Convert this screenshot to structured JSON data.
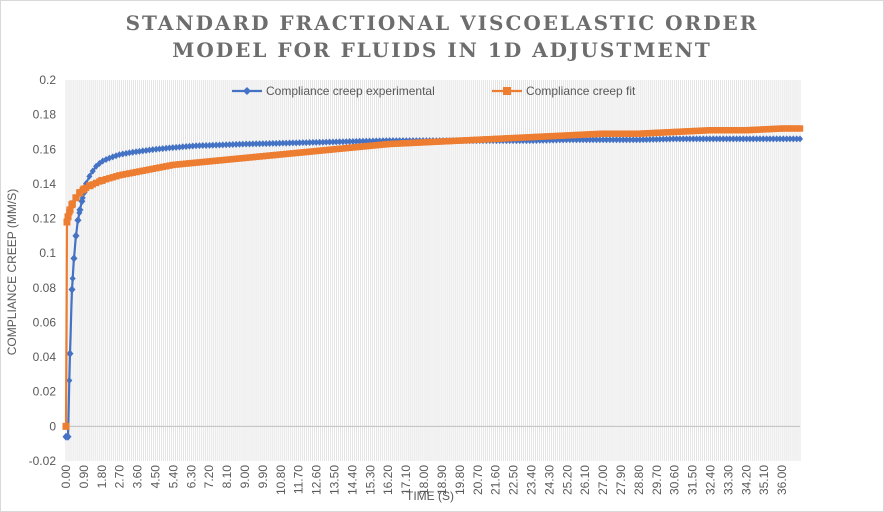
{
  "chart_data": {
    "type": "line",
    "title": "STANDARD FRACTIONAL VISCOELASTIC ORDER MODEL FOR FLUIDS IN 1D ADJUSTMENT",
    "title_lines": [
      "STANDARD FRACTIONAL VISCOELASTIC ORDER",
      "MODEL FOR FLUIDS IN 1D ADJUSTMENT"
    ],
    "xlabel": "TIME (S)",
    "ylabel": "COMPLIANCE CREEP (MM/S)",
    "ylim": [
      -0.02,
      0.2
    ],
    "y_ticks": [
      "-0.02",
      "0",
      "0.02",
      "0.04",
      "0.06",
      "0.08",
      "0.1",
      "0.12",
      "0.14",
      "0.16",
      "0.18",
      "0.2"
    ],
    "xlim": [
      0,
      36.9
    ],
    "x_tick_labels": [
      "0.00",
      "0.90",
      "1.80",
      "2.70",
      "3.60",
      "4.50",
      "5.40",
      "6.30",
      "7.20",
      "8.10",
      "9.00",
      "9.90",
      "10.80",
      "11.70",
      "12.60",
      "13.50",
      "14.40",
      "15.30",
      "16.20",
      "17.10",
      "18.00",
      "18.90",
      "19.80",
      "20.70",
      "21.60",
      "22.50",
      "23.40",
      "24.30",
      "25.20",
      "26.10",
      "27.00",
      "27.90",
      "28.80",
      "29.70",
      "30.60",
      "31.50",
      "32.40",
      "33.30",
      "34.20",
      "35.10",
      "36.00"
    ],
    "grid": "vertical",
    "legend_position": "top",
    "series": [
      {
        "name": "Compliance creep experimental",
        "color": "#4472c4",
        "marker": "diamond",
        "x": [
          0,
          0.1,
          0.2,
          0.3,
          0.4,
          0.5,
          0.6,
          0.7,
          0.8,
          0.9,
          1.0,
          1.2,
          1.5,
          1.8,
          2.2,
          2.7,
          3.2,
          3.8,
          4.5,
          5.4,
          6.5,
          7.8,
          9.0,
          10.8,
          12.6,
          14.4,
          16.2,
          18.0,
          19.8,
          21.6,
          23.4,
          25.2,
          27.0,
          28.8,
          30.6,
          32.4,
          34.2,
          36.0,
          36.9
        ],
        "y": [
          -0.006,
          -0.006,
          0.042,
          0.079,
          0.097,
          0.11,
          0.119,
          0.125,
          0.13,
          0.135,
          0.14,
          0.145,
          0.15,
          0.153,
          0.155,
          0.157,
          0.158,
          0.159,
          0.16,
          0.161,
          0.162,
          0.1625,
          0.163,
          0.1635,
          0.164,
          0.1645,
          0.165,
          0.165,
          0.165,
          0.165,
          0.165,
          0.1655,
          0.1655,
          0.1655,
          0.166,
          0.166,
          0.166,
          0.166,
          0.166
        ]
      },
      {
        "name": "Compliance creep fit",
        "color": "#ed7d31",
        "marker": "square",
        "x": [
          0,
          0.05,
          0.1,
          0.2,
          0.3,
          0.5,
          0.7,
          0.9,
          1.2,
          1.8,
          2.7,
          3.6,
          4.5,
          5.4,
          6.3,
          7.2,
          8.1,
          9.0,
          10.8,
          12.6,
          14.4,
          16.2,
          18.0,
          19.8,
          21.6,
          23.4,
          25.2,
          27.0,
          28.8,
          30.6,
          32.4,
          34.2,
          36.0,
          36.9
        ],
        "y": [
          0,
          0.118,
          0.121,
          0.125,
          0.128,
          0.132,
          0.135,
          0.137,
          0.139,
          0.142,
          0.145,
          0.147,
          0.149,
          0.151,
          0.152,
          0.153,
          0.154,
          0.155,
          0.157,
          0.159,
          0.161,
          0.163,
          0.164,
          0.165,
          0.166,
          0.167,
          0.168,
          0.169,
          0.169,
          0.17,
          0.171,
          0.171,
          0.172,
          0.172
        ]
      }
    ]
  }
}
